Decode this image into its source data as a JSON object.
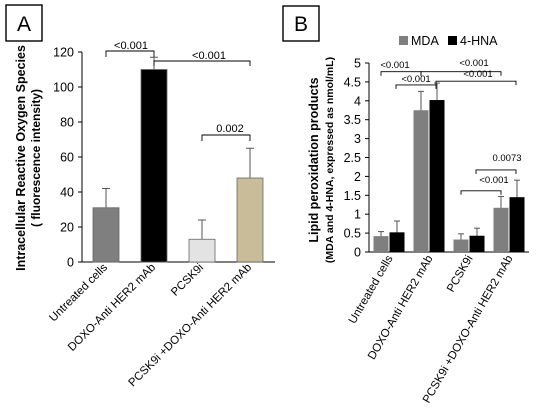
{
  "chart_data": [
    {
      "panel_label": "A",
      "type": "bar",
      "categories": [
        "Untreated cells",
        "DOXO-Anti HER2 mAb",
        "PCSK9i",
        "PCSK9i +DOXO-Anti HER2 mAb"
      ],
      "values": [
        31,
        110,
        13,
        48
      ],
      "errors": [
        11,
        7,
        11,
        17
      ],
      "bar_colors": [
        "#7f7f7f",
        "#000000",
        "#e3e3e3",
        "#c8bd98"
      ],
      "ylabel": "Intracellular Reactive Oxygen Species",
      "ylabel2": "( fluorescence  intensity)",
      "ylim": [
        0,
        120
      ],
      "yticks": [
        "0",
        "20",
        "40",
        "60",
        "80",
        "100",
        "120"
      ],
      "grid": false,
      "annotations": [
        {
          "text": "<0.001",
          "from": 0,
          "to": 1
        },
        {
          "text": "<0.001",
          "from": 1,
          "to": 3
        },
        {
          "text": "0.002",
          "from": 2,
          "to": 3
        }
      ]
    },
    {
      "panel_label": "B",
      "type": "bar",
      "categories": [
        "Untreated cells",
        "DOXO-Anti HER2 mAb",
        "PCSK9i",
        "PCSK9i +DOXO-Anti HER2 mAb"
      ],
      "series": [
        {
          "name": "MDA",
          "color": "#7f7f7f",
          "values": [
            0.42,
            3.75,
            0.33,
            1.17
          ],
          "errors": [
            0.12,
            0.5,
            0.15,
            0.3
          ]
        },
        {
          "name": "4-HNA",
          "color": "#000000",
          "values": [
            0.52,
            4.02,
            0.43,
            1.45
          ],
          "errors": [
            0.3,
            0.45,
            0.2,
            0.45
          ]
        }
      ],
      "ylabel": "Lipid peroxidation products",
      "ylabel2": "(MDA and 4-HNA, expressed as nmol/mL)",
      "ylim": [
        0,
        5
      ],
      "yticks": [
        "0",
        "0.5",
        "1",
        "1.5",
        "2",
        "2.5",
        "3",
        "3.5",
        "4",
        "4.5",
        "5"
      ],
      "grid": false,
      "legend_position": "top",
      "annotations": [
        {
          "text": "<0.001",
          "from": 0,
          "to": 1,
          "level": 4.77
        },
        {
          "text": "<0.001",
          "from": 0.2,
          "to": 1.2,
          "level": 4.42
        },
        {
          "text": "<0.001",
          "from": 1,
          "to": 3,
          "level": 4.77
        },
        {
          "text": "<0.001",
          "from": 1.2,
          "to": 3.2,
          "level": 4.52
        },
        {
          "text": "0.0073",
          "from": 2.2,
          "to": 3.2,
          "level": 2.17
        },
        {
          "text": "<0.001",
          "from": 2,
          "to": 3,
          "level": 1.62
        }
      ]
    }
  ]
}
